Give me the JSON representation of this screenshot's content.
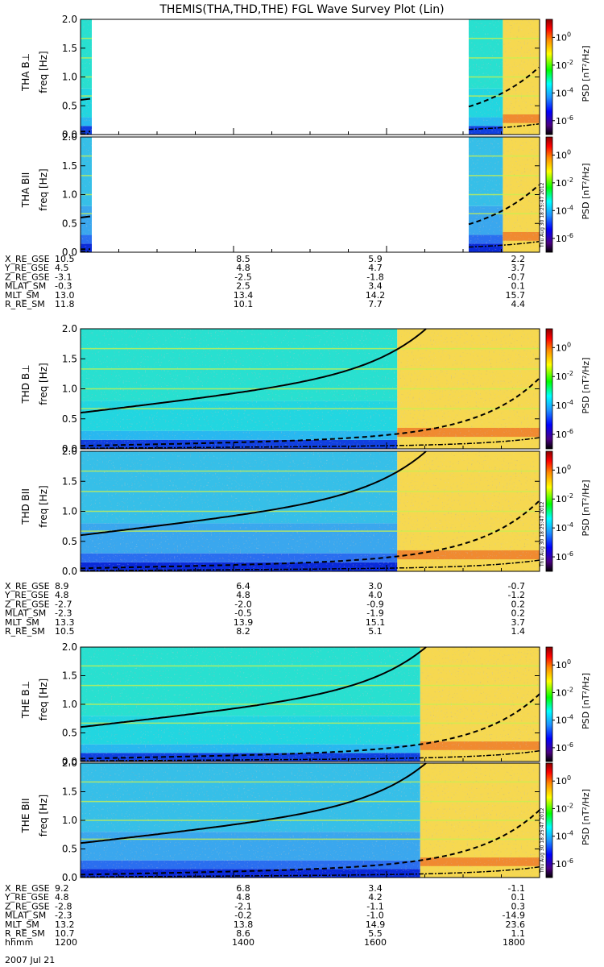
{
  "title": "THEMIS(THA,THD,THE) FGL Wave Survey Plot (Lin)",
  "colorbar": {
    "label": "PSD [nT²/Hz]",
    "ticks": [
      {
        "base": "10",
        "exp": "0",
        "value": 1
      },
      {
        "base": "10",
        "exp": "-2",
        "value": 0.01
      },
      {
        "base": "10",
        "exp": "-4",
        "value": 0.0001
      },
      {
        "base": "10",
        "exp": "-6",
        "value": 1e-06
      }
    ],
    "colors": [
      "#000000",
      "#4b0082",
      "#0000ff",
      "#1e90ff",
      "#00ffff",
      "#00ff00",
      "#ffff00",
      "#ff8c00",
      "#ff0000",
      "#8b0000"
    ]
  },
  "timestamp": "Thu Aug 30 18:25:47 2012",
  "chart_data": [
    {
      "type": "heatmap",
      "panel": "THA B⊥",
      "ylabel": "THA B⊥",
      "yunits": "freq [Hz]",
      "ylim": [
        0,
        2.0
      ],
      "yticks": [
        "0.0",
        "0.5",
        "1.0",
        "1.5",
        "2.0"
      ],
      "data_coverage": "partial",
      "xlim": [
        "1200",
        "1800"
      ]
    },
    {
      "type": "heatmap",
      "panel": "THA B∥",
      "ylabel": "THA BII",
      "yunits": "freq [Hz]",
      "ylim": [
        0,
        2.0
      ],
      "yticks": [
        "0.0",
        "0.5",
        "1.0",
        "1.5",
        "2.0"
      ],
      "data_coverage": "partial",
      "xlim": [
        "1200",
        "1800"
      ]
    },
    {
      "type": "heatmap",
      "panel": "THD B⊥",
      "ylabel": "THD B⊥",
      "yunits": "freq [Hz]",
      "ylim": [
        0,
        2.0
      ],
      "yticks": [
        "0.0",
        "0.5",
        "1.0",
        "1.5",
        "2.0"
      ],
      "xlim": [
        "1200",
        "1800"
      ]
    },
    {
      "type": "heatmap",
      "panel": "THD B∥",
      "ylabel": "THD BII",
      "yunits": "freq [Hz]",
      "ylim": [
        0,
        2.0
      ],
      "yticks": [
        "0.0",
        "0.5",
        "1.0",
        "1.5",
        "2.0"
      ],
      "xlim": [
        "1200",
        "1800"
      ]
    },
    {
      "type": "heatmap",
      "panel": "THE B⊥",
      "ylabel": "THE B⊥",
      "yunits": "freq [Hz]",
      "ylim": [
        0,
        2.0
      ],
      "yticks": [
        "0.0",
        "0.5",
        "1.0",
        "1.5",
        "2.0"
      ],
      "xlim": [
        "1200",
        "1800"
      ]
    },
    {
      "type": "heatmap",
      "panel": "THE B∥",
      "ylabel": "THE BII",
      "yunits": "freq [Hz]",
      "ylim": [
        0,
        2.0
      ],
      "yticks": [
        "0.0",
        "0.5",
        "1.0",
        "1.5",
        "2.0"
      ],
      "xlim": [
        "1200",
        "1800"
      ]
    }
  ],
  "ephemeris": [
    {
      "probe": "THA",
      "rows": [
        {
          "label": "X_RE_GSE",
          "values": [
            "10.5",
            "8.5",
            "5.9",
            "2.2"
          ]
        },
        {
          "label": "Y_RE_GSE",
          "values": [
            "4.5",
            "4.8",
            "4.7",
            "3.7"
          ]
        },
        {
          "label": "Z_RE_GSE",
          "values": [
            "-3.1",
            "-2.5",
            "-1.8",
            "-0.7"
          ]
        },
        {
          "label": "MLAT_SM",
          "values": [
            "-0.3",
            "2.5",
            "3.4",
            "0.1"
          ]
        },
        {
          "label": "MLT_SM",
          "values": [
            "13.0",
            "13.4",
            "14.2",
            "15.7"
          ]
        },
        {
          "label": "R_RE_SM",
          "values": [
            "11.8",
            "10.1",
            "7.7",
            "4.4"
          ]
        }
      ]
    },
    {
      "probe": "THD",
      "rows": [
        {
          "label": "X_RE_GSE",
          "values": [
            "8.9",
            "6.4",
            "3.0",
            "-0.7"
          ]
        },
        {
          "label": "Y_RE_GSE",
          "values": [
            "4.8",
            "4.8",
            "4.0",
            "-1.2"
          ]
        },
        {
          "label": "Z_RE_GSE",
          "values": [
            "-2.7",
            "-2.0",
            "-0.9",
            "0.2"
          ]
        },
        {
          "label": "MLAT_SM",
          "values": [
            "-2.3",
            "-0.5",
            "-1.9",
            "0.2"
          ]
        },
        {
          "label": "MLT_SM",
          "values": [
            "13.3",
            "13.9",
            "15.1",
            "3.7"
          ]
        },
        {
          "label": "R_RE_SM",
          "values": [
            "10.5",
            "8.2",
            "5.1",
            "1.4"
          ]
        }
      ]
    },
    {
      "probe": "THE",
      "rows": [
        {
          "label": "X_RE_GSE",
          "values": [
            "9.2",
            "6.8",
            "3.4",
            "-1.1"
          ]
        },
        {
          "label": "Y_RE_GSE",
          "values": [
            "4.8",
            "4.8",
            "4.2",
            "0.1"
          ]
        },
        {
          "label": "Z_RE_GSE",
          "values": [
            "-2.8",
            "-2.1",
            "-1.1",
            "0.3"
          ]
        },
        {
          "label": "MLAT_SM",
          "values": [
            "-2.3",
            "-0.2",
            "-1.0",
            "-14.9"
          ]
        },
        {
          "label": "MLT_SM",
          "values": [
            "13.2",
            "13.8",
            "14.9",
            "23.6"
          ]
        },
        {
          "label": "R_RE_SM",
          "values": [
            "10.7",
            "8.6",
            "5.5",
            "1.1"
          ]
        },
        {
          "label": "hhmm",
          "values": [
            "1200",
            "1400",
            "1600",
            "1800"
          ]
        }
      ]
    }
  ],
  "date": "2007 Jul 21"
}
